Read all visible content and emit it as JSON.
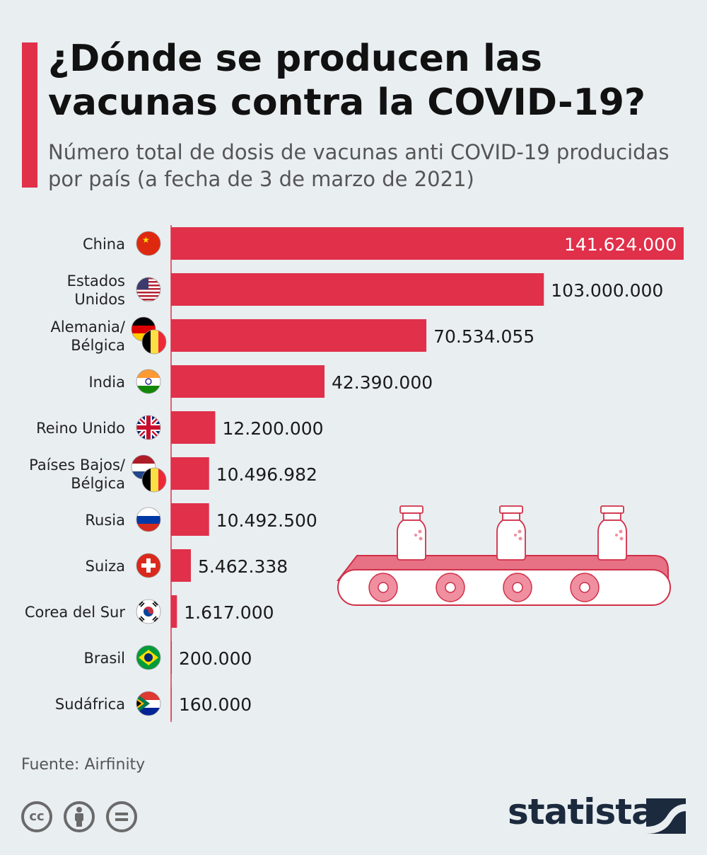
{
  "title": "¿Dónde se producen las vacunas contra la COVID-19?",
  "subtitle": "Número total de dosis de vacunas anti COVID-19 producidas por país (a fecha de 3 de marzo de 2021)",
  "source": "Fuente: Airfinity",
  "brand": "statista",
  "colors": {
    "bar": "#e0304a",
    "accent": "#e0304a",
    "background": "#e9eef1",
    "brand": "#1c2a3e"
  },
  "license_icons": [
    "cc-icon",
    "attribution-icon",
    "no-derivatives-icon"
  ],
  "chart_data": {
    "type": "bar",
    "orientation": "horizontal",
    "categories": [
      [
        "China"
      ],
      [
        "Estados",
        "Unidos"
      ],
      [
        "Alemania/",
        "Bélgica"
      ],
      [
        "India"
      ],
      [
        "Reino Unido"
      ],
      [
        "Países Bajos/",
        "Bélgica"
      ],
      [
        "Rusia"
      ],
      [
        "Suiza"
      ],
      [
        "Corea del Sur"
      ],
      [
        "Brasil"
      ],
      [
        "Sudáfrica"
      ]
    ],
    "values": [
      141624000,
      103000000,
      70534055,
      42390000,
      12200000,
      10496982,
      10492500,
      5462338,
      1617000,
      200000,
      160000
    ],
    "labels": [
      "141.624.000",
      "103.000.000",
      "70.534.055",
      "42.390.000",
      "12.200.000",
      "10.496.982",
      "10.492.500",
      "5.462.338",
      "1.617.000",
      "200.000",
      "160.000"
    ],
    "flags": [
      "china-flag-icon",
      "usa-flag-icon",
      "germany-belgium-flag-icon",
      "india-flag-icon",
      "uk-flag-icon",
      "netherlands-belgium-flag-icon",
      "russia-flag-icon",
      "switzerland-flag-icon",
      "south-korea-flag-icon",
      "brazil-flag-icon",
      "south-africa-flag-icon"
    ],
    "xlim": [
      0,
      141624000
    ],
    "grid": false
  }
}
